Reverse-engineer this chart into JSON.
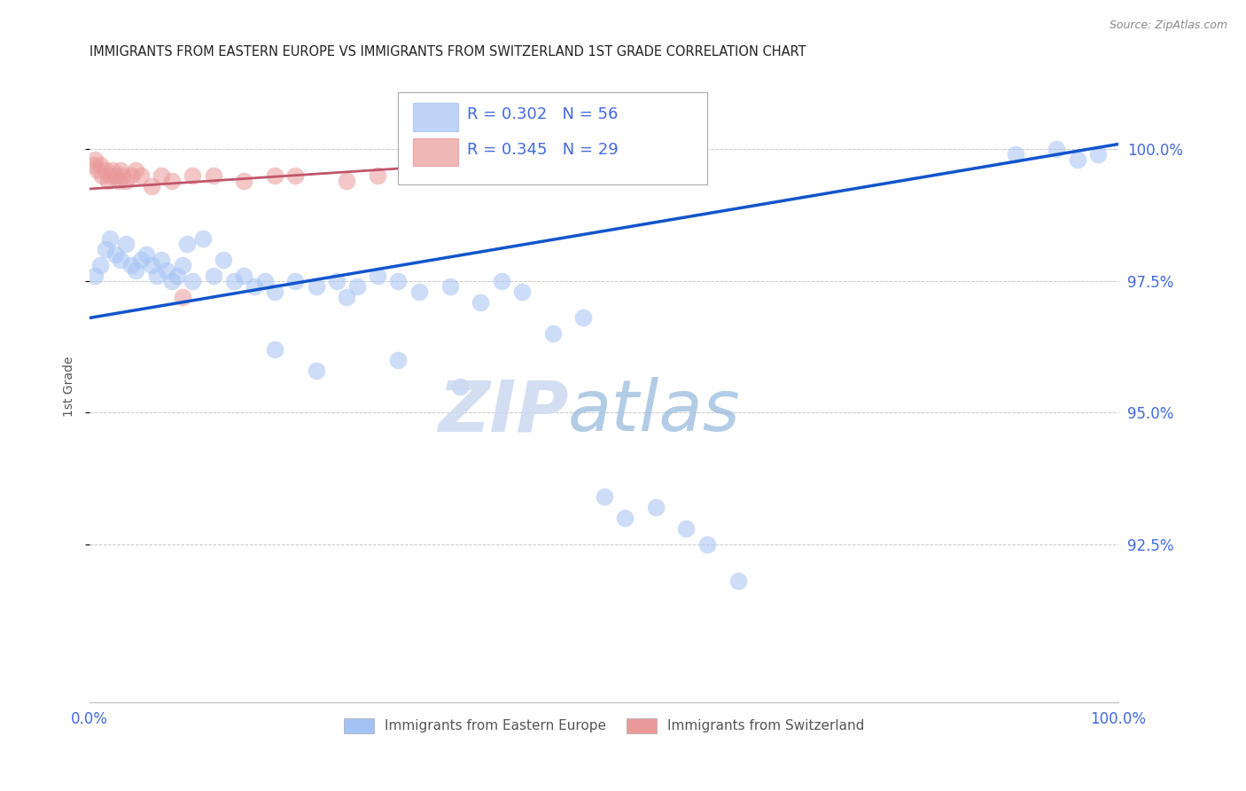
{
  "title": "IMMIGRANTS FROM EASTERN EUROPE VS IMMIGRANTS FROM SWITZERLAND 1ST GRADE CORRELATION CHART",
  "source": "Source: ZipAtlas.com",
  "ylabel": "1st Grade",
  "legend_blue_label": "Immigrants from Eastern Europe",
  "legend_pink_label": "Immigrants from Switzerland",
  "R_blue": 0.302,
  "N_blue": 56,
  "R_pink": 0.345,
  "N_pink": 29,
  "blue_color": "#a4c2f4",
  "pink_color": "#ea9999",
  "blue_line_color": "#1155cc",
  "pink_line_color": "#c0566a",
  "background_color": "#ffffff",
  "grid_color": "#b0b0b0",
  "title_color": "#222222",
  "axis_label_color": "#555555",
  "tick_label_color": "#4169e1",
  "source_color": "#888888",
  "watermark_zip_color": "#ccd9f0",
  "watermark_atlas_color": "#99bbdd",
  "xlim": [
    0,
    100
  ],
  "ylim": [
    89.5,
    101.5
  ],
  "yticks": [
    92.5,
    95.0,
    97.5,
    100.0
  ],
  "blue_x": [
    0.5,
    1.0,
    1.5,
    2.0,
    2.5,
    3.0,
    3.5,
    4.0,
    4.5,
    5.0,
    5.5,
    6.0,
    6.5,
    7.0,
    7.5,
    8.0,
    8.5,
    9.0,
    9.5,
    10.0,
    11.0,
    12.0,
    13.0,
    14.0,
    15.0,
    16.0,
    17.0,
    18.0,
    20.0,
    22.0,
    24.0,
    25.0,
    26.0,
    28.0,
    30.0,
    32.0,
    35.0,
    38.0,
    40.0,
    42.0,
    45.0,
    48.0,
    50.0,
    52.0,
    55.0,
    58.0,
    60.0,
    63.0,
    18.0,
    22.0,
    30.0,
    36.0,
    90.0,
    94.0,
    96.0,
    98.0
  ],
  "blue_y": [
    97.6,
    97.8,
    98.1,
    98.3,
    98.0,
    97.9,
    98.2,
    97.8,
    97.7,
    97.9,
    98.0,
    97.8,
    97.6,
    97.9,
    97.7,
    97.5,
    97.6,
    97.8,
    98.2,
    97.5,
    98.3,
    97.6,
    97.9,
    97.5,
    97.6,
    97.4,
    97.5,
    97.3,
    97.5,
    97.4,
    97.5,
    97.2,
    97.4,
    97.6,
    97.5,
    97.3,
    97.4,
    97.1,
    97.5,
    97.3,
    96.5,
    96.8,
    93.4,
    93.0,
    93.2,
    92.8,
    92.5,
    91.8,
    96.2,
    95.8,
    96.0,
    95.5,
    99.9,
    100.0,
    99.8,
    99.9
  ],
  "pink_x": [
    0.3,
    0.5,
    0.8,
    1.0,
    1.2,
    1.5,
    1.8,
    2.0,
    2.2,
    2.5,
    2.8,
    3.0,
    3.2,
    3.5,
    4.0,
    4.5,
    5.0,
    6.0,
    7.0,
    8.0,
    9.0,
    10.0,
    12.0,
    15.0,
    18.0,
    20.0,
    25.0,
    28.0,
    32.0
  ],
  "pink_y": [
    99.7,
    99.8,
    99.6,
    99.7,
    99.5,
    99.6,
    99.4,
    99.5,
    99.6,
    99.5,
    99.4,
    99.6,
    99.5,
    99.4,
    99.5,
    99.6,
    99.5,
    99.3,
    99.5,
    99.4,
    97.2,
    99.5,
    99.5,
    99.4,
    99.5,
    99.5,
    99.4,
    99.5,
    99.5
  ],
  "blue_line_x0": 0,
  "blue_line_y0": 96.8,
  "blue_line_x1": 100,
  "blue_line_y1": 100.1,
  "pink_line_x0": 0,
  "pink_line_y0": 99.25,
  "pink_line_x1": 35,
  "pink_line_y1": 99.7
}
